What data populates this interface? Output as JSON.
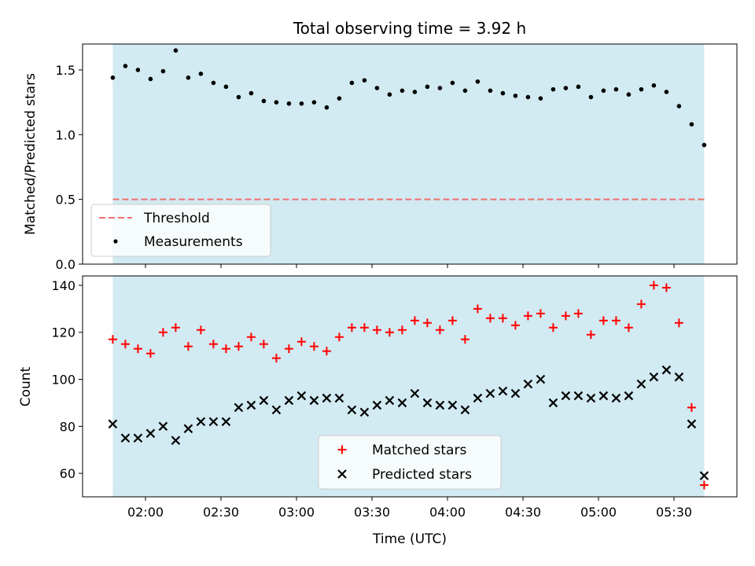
{
  "chart_data": [
    {
      "type": "scatter",
      "title": "Total observing time = 3.92 h",
      "xlabel": "",
      "ylabel": "Matched/Predicted stars",
      "ylim": [
        0,
        1.7
      ],
      "yticks": [
        0.0,
        0.5,
        1.0,
        1.5
      ],
      "ytick_labels": [
        "0.0",
        "0.5",
        "1.0",
        "1.5"
      ],
      "shaded_span": [
        "01:47",
        "05:42"
      ],
      "shade_color": "#add8e6",
      "threshold": {
        "name": "Threshold",
        "value": 0.5,
        "color": "#f07070",
        "style": "dashed"
      },
      "legend": {
        "loc": "lower-left",
        "entries": [
          "Threshold",
          "Measurements"
        ]
      },
      "series": [
        {
          "name": "Measurements",
          "color": "#000000",
          "marker": "dot",
          "points": [
            [
              "01:47",
              1.44
            ],
            [
              "01:52",
              1.53
            ],
            [
              "01:57",
              1.5
            ],
            [
              "02:02",
              1.43
            ],
            [
              "02:07",
              1.49
            ],
            [
              "02:12",
              1.65
            ],
            [
              "02:17",
              1.44
            ],
            [
              "02:22",
              1.47
            ],
            [
              "02:27",
              1.4
            ],
            [
              "02:32",
              1.37
            ],
            [
              "02:37",
              1.29
            ],
            [
              "02:42",
              1.32
            ],
            [
              "02:47",
              1.26
            ],
            [
              "02:52",
              1.25
            ],
            [
              "02:57",
              1.24
            ],
            [
              "03:02",
              1.24
            ],
            [
              "03:07",
              1.25
            ],
            [
              "03:12",
              1.21
            ],
            [
              "03:17",
              1.28
            ],
            [
              "03:22",
              1.4
            ],
            [
              "03:27",
              1.42
            ],
            [
              "03:32",
              1.36
            ],
            [
              "03:37",
              1.31
            ],
            [
              "03:42",
              1.34
            ],
            [
              "03:47",
              1.33
            ],
            [
              "03:52",
              1.37
            ],
            [
              "03:57",
              1.36
            ],
            [
              "04:02",
              1.4
            ],
            [
              "04:07",
              1.34
            ],
            [
              "04:12",
              1.41
            ],
            [
              "04:17",
              1.34
            ],
            [
              "04:22",
              1.32
            ],
            [
              "04:27",
              1.3
            ],
            [
              "04:32",
              1.29
            ],
            [
              "04:37",
              1.28
            ],
            [
              "04:42",
              1.35
            ],
            [
              "04:47",
              1.36
            ],
            [
              "04:52",
              1.37
            ],
            [
              "04:57",
              1.29
            ],
            [
              "05:02",
              1.34
            ],
            [
              "05:07",
              1.35
            ],
            [
              "05:12",
              1.31
            ],
            [
              "05:17",
              1.35
            ],
            [
              "05:22",
              1.38
            ],
            [
              "05:27",
              1.33
            ],
            [
              "05:32",
              1.22
            ],
            [
              "05:37",
              1.08
            ],
            [
              "05:42",
              0.92
            ]
          ]
        }
      ]
    },
    {
      "type": "scatter",
      "title": "",
      "xlabel": "Time (UTC)",
      "ylabel": "Count",
      "ylim": [
        50,
        144
      ],
      "yticks": [
        60,
        80,
        100,
        120,
        140
      ],
      "ytick_labels": [
        "60",
        "80",
        "100",
        "120",
        "140"
      ],
      "xlim": [
        "01:35",
        "05:55"
      ],
      "xticks": [
        "02:00",
        "02:30",
        "03:00",
        "03:30",
        "04:00",
        "04:30",
        "05:00",
        "05:30"
      ],
      "shaded_span": [
        "01:47",
        "05:42"
      ],
      "shade_color": "#add8e6",
      "legend": {
        "loc": "lower-center",
        "entries": [
          "Matched stars",
          "Predicted stars"
        ]
      },
      "series": [
        {
          "name": "Matched stars",
          "color": "#ff0000",
          "marker": "plus",
          "points": [
            [
              "01:47",
              117
            ],
            [
              "01:52",
              115
            ],
            [
              "01:57",
              113
            ],
            [
              "02:02",
              111
            ],
            [
              "02:07",
              120
            ],
            [
              "02:12",
              122
            ],
            [
              "02:17",
              114
            ],
            [
              "02:22",
              121
            ],
            [
              "02:27",
              115
            ],
            [
              "02:32",
              113
            ],
            [
              "02:37",
              114
            ],
            [
              "02:42",
              118
            ],
            [
              "02:47",
              115
            ],
            [
              "02:52",
              109
            ],
            [
              "02:57",
              113
            ],
            [
              "03:02",
              116
            ],
            [
              "03:07",
              114
            ],
            [
              "03:12",
              112
            ],
            [
              "03:17",
              118
            ],
            [
              "03:22",
              122
            ],
            [
              "03:27",
              122
            ],
            [
              "03:32",
              121
            ],
            [
              "03:37",
              120
            ],
            [
              "03:42",
              121
            ],
            [
              "03:47",
              125
            ],
            [
              "03:52",
              124
            ],
            [
              "03:57",
              121
            ],
            [
              "04:02",
              125
            ],
            [
              "04:07",
              117
            ],
            [
              "04:12",
              130
            ],
            [
              "04:17",
              126
            ],
            [
              "04:22",
              126
            ],
            [
              "04:27",
              123
            ],
            [
              "04:32",
              127
            ],
            [
              "04:37",
              128
            ],
            [
              "04:42",
              122
            ],
            [
              "04:47",
              127
            ],
            [
              "04:52",
              128
            ],
            [
              "04:57",
              119
            ],
            [
              "05:02",
              125
            ],
            [
              "05:07",
              125
            ],
            [
              "05:12",
              122
            ],
            [
              "05:17",
              132
            ],
            [
              "05:22",
              140
            ],
            [
              "05:27",
              139
            ],
            [
              "05:32",
              124
            ],
            [
              "05:37",
              88
            ],
            [
              "05:42",
              55
            ]
          ]
        },
        {
          "name": "Predicted stars",
          "color": "#000000",
          "marker": "x",
          "points": [
            [
              "01:47",
              81
            ],
            [
              "01:52",
              75
            ],
            [
              "01:57",
              75
            ],
            [
              "02:02",
              77
            ],
            [
              "02:07",
              80
            ],
            [
              "02:12",
              74
            ],
            [
              "02:17",
              79
            ],
            [
              "02:22",
              82
            ],
            [
              "02:27",
              82
            ],
            [
              "02:32",
              82
            ],
            [
              "02:37",
              88
            ],
            [
              "02:42",
              89
            ],
            [
              "02:47",
              91
            ],
            [
              "02:52",
              87
            ],
            [
              "02:57",
              91
            ],
            [
              "03:02",
              93
            ],
            [
              "03:07",
              91
            ],
            [
              "03:12",
              92
            ],
            [
              "03:17",
              92
            ],
            [
              "03:22",
              87
            ],
            [
              "03:27",
              86
            ],
            [
              "03:32",
              89
            ],
            [
              "03:37",
              91
            ],
            [
              "03:42",
              90
            ],
            [
              "03:47",
              94
            ],
            [
              "03:52",
              90
            ],
            [
              "03:57",
              89
            ],
            [
              "04:02",
              89
            ],
            [
              "04:07",
              87
            ],
            [
              "04:12",
              92
            ],
            [
              "04:17",
              94
            ],
            [
              "04:22",
              95
            ],
            [
              "04:27",
              94
            ],
            [
              "04:32",
              98
            ],
            [
              "04:37",
              100
            ],
            [
              "04:42",
              90
            ],
            [
              "04:47",
              93
            ],
            [
              "04:52",
              93
            ],
            [
              "04:57",
              92
            ],
            [
              "05:02",
              93
            ],
            [
              "05:07",
              92
            ],
            [
              "05:12",
              93
            ],
            [
              "05:17",
              98
            ],
            [
              "05:22",
              101
            ],
            [
              "05:27",
              104
            ],
            [
              "05:32",
              101
            ],
            [
              "05:37",
              81
            ],
            [
              "05:42",
              59
            ]
          ]
        }
      ]
    }
  ]
}
